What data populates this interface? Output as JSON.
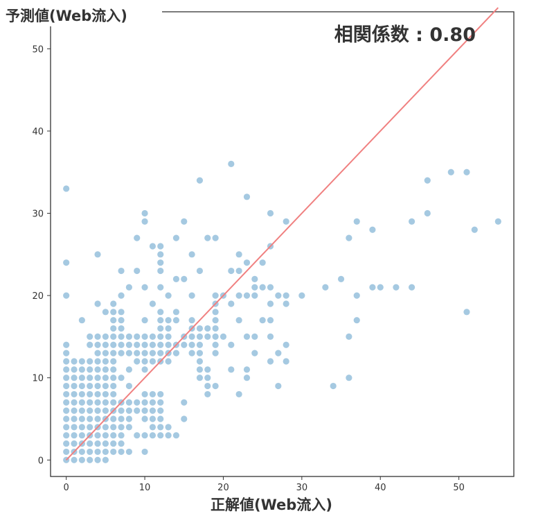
{
  "chart_data": {
    "type": "scatter",
    "xlabel": "正解値(Web流入)",
    "ylabel": "予測値(Web流入)",
    "annotation": "相関係数 : 0.80",
    "xlim": [
      -2,
      57
    ],
    "ylim": [
      -2,
      54.5
    ],
    "xticks": [
      0,
      10,
      20,
      30,
      40,
      50
    ],
    "yticks": [
      0,
      10,
      20,
      30,
      40,
      50
    ],
    "point_color": "#1f77b4",
    "point_opacity": 0.4,
    "line_color": "#f08080",
    "diagonal_line": {
      "x": [
        0,
        55
      ],
      "y": [
        0,
        55
      ]
    },
    "grid": false,
    "points": [
      [
        0,
        0
      ],
      [
        0,
        1
      ],
      [
        0,
        2
      ],
      [
        0,
        3
      ],
      [
        0,
        4
      ],
      [
        0,
        5
      ],
      [
        0,
        6
      ],
      [
        0,
        7
      ],
      [
        0,
        8
      ],
      [
        0,
        9
      ],
      [
        0,
        10
      ],
      [
        0,
        11
      ],
      [
        0,
        12
      ],
      [
        0,
        13
      ],
      [
        0,
        14
      ],
      [
        0,
        20
      ],
      [
        0,
        24
      ],
      [
        0,
        33
      ],
      [
        1,
        0
      ],
      [
        1,
        1
      ],
      [
        1,
        2
      ],
      [
        1,
        3
      ],
      [
        1,
        4
      ],
      [
        1,
        5
      ],
      [
        1,
        6
      ],
      [
        1,
        7
      ],
      [
        1,
        8
      ],
      [
        1,
        9
      ],
      [
        1,
        10
      ],
      [
        1,
        11
      ],
      [
        1,
        12
      ],
      [
        2,
        0
      ],
      [
        2,
        1
      ],
      [
        2,
        2
      ],
      [
        2,
        3
      ],
      [
        2,
        4
      ],
      [
        2,
        5
      ],
      [
        2,
        6
      ],
      [
        2,
        7
      ],
      [
        2,
        8
      ],
      [
        2,
        9
      ],
      [
        2,
        10
      ],
      [
        2,
        11
      ],
      [
        2,
        12
      ],
      [
        2,
        17
      ],
      [
        3,
        0
      ],
      [
        3,
        1
      ],
      [
        3,
        2
      ],
      [
        3,
        3
      ],
      [
        3,
        4
      ],
      [
        3,
        5
      ],
      [
        3,
        6
      ],
      [
        3,
        7
      ],
      [
        3,
        8
      ],
      [
        3,
        9
      ],
      [
        3,
        10
      ],
      [
        3,
        11
      ],
      [
        3,
        12
      ],
      [
        3,
        14
      ],
      [
        3,
        15
      ],
      [
        4,
        0
      ],
      [
        4,
        1
      ],
      [
        4,
        2
      ],
      [
        4,
        3
      ],
      [
        4,
        4
      ],
      [
        4,
        5
      ],
      [
        4,
        6
      ],
      [
        4,
        7
      ],
      [
        4,
        8
      ],
      [
        4,
        9
      ],
      [
        4,
        10
      ],
      [
        4,
        11
      ],
      [
        4,
        12
      ],
      [
        4,
        13
      ],
      [
        4,
        14
      ],
      [
        4,
        15
      ],
      [
        4,
        19
      ],
      [
        4,
        25
      ],
      [
        5,
        0
      ],
      [
        5,
        1
      ],
      [
        5,
        2
      ],
      [
        5,
        3
      ],
      [
        5,
        4
      ],
      [
        5,
        5
      ],
      [
        5,
        6
      ],
      [
        5,
        7
      ],
      [
        5,
        8
      ],
      [
        5,
        9
      ],
      [
        5,
        10
      ],
      [
        5,
        11
      ],
      [
        5,
        12
      ],
      [
        5,
        13
      ],
      [
        5,
        14
      ],
      [
        5,
        15
      ],
      [
        5,
        18
      ],
      [
        6,
        1
      ],
      [
        6,
        2
      ],
      [
        6,
        3
      ],
      [
        6,
        4
      ],
      [
        6,
        5
      ],
      [
        6,
        6
      ],
      [
        6,
        7
      ],
      [
        6,
        8
      ],
      [
        6,
        9
      ],
      [
        6,
        10
      ],
      [
        6,
        11
      ],
      [
        6,
        12
      ],
      [
        6,
        13
      ],
      [
        6,
        14
      ],
      [
        6,
        15
      ],
      [
        6,
        16
      ],
      [
        6,
        17
      ],
      [
        6,
        18
      ],
      [
        6,
        19
      ],
      [
        7,
        1
      ],
      [
        7,
        2
      ],
      [
        7,
        3
      ],
      [
        7,
        4
      ],
      [
        7,
        5
      ],
      [
        7,
        6
      ],
      [
        7,
        7
      ],
      [
        7,
        10
      ],
      [
        7,
        13
      ],
      [
        7,
        14
      ],
      [
        7,
        15
      ],
      [
        7,
        16
      ],
      [
        7,
        17
      ],
      [
        7,
        18
      ],
      [
        7,
        20
      ],
      [
        7,
        23
      ],
      [
        8,
        1
      ],
      [
        8,
        4
      ],
      [
        8,
        5
      ],
      [
        8,
        6
      ],
      [
        8,
        7
      ],
      [
        8,
        9
      ],
      [
        8,
        11
      ],
      [
        8,
        13
      ],
      [
        8,
        14
      ],
      [
        8,
        15
      ],
      [
        8,
        21
      ],
      [
        9,
        3
      ],
      [
        9,
        6
      ],
      [
        9,
        7
      ],
      [
        9,
        12
      ],
      [
        9,
        13
      ],
      [
        9,
        14
      ],
      [
        9,
        15
      ],
      [
        9,
        23
      ],
      [
        9,
        27
      ],
      [
        10,
        1
      ],
      [
        10,
        3
      ],
      [
        10,
        5
      ],
      [
        10,
        6
      ],
      [
        10,
        7
      ],
      [
        10,
        8
      ],
      [
        10,
        11
      ],
      [
        10,
        12
      ],
      [
        10,
        13
      ],
      [
        10,
        14
      ],
      [
        10,
        15
      ],
      [
        10,
        17
      ],
      [
        10,
        21
      ],
      [
        10,
        29
      ],
      [
        10,
        30
      ],
      [
        11,
        3
      ],
      [
        11,
        4
      ],
      [
        11,
        5
      ],
      [
        11,
        6
      ],
      [
        11,
        7
      ],
      [
        11,
        8
      ],
      [
        11,
        12
      ],
      [
        11,
        13
      ],
      [
        11,
        14
      ],
      [
        11,
        15
      ],
      [
        11,
        19
      ],
      [
        11,
        26
      ],
      [
        12,
        3
      ],
      [
        12,
        4
      ],
      [
        12,
        5
      ],
      [
        12,
        6
      ],
      [
        12,
        7
      ],
      [
        12,
        8
      ],
      [
        12,
        12
      ],
      [
        12,
        13
      ],
      [
        12,
        14
      ],
      [
        12,
        15
      ],
      [
        12,
        16
      ],
      [
        12,
        17
      ],
      [
        12,
        18
      ],
      [
        12,
        21
      ],
      [
        12,
        23
      ],
      [
        12,
        24
      ],
      [
        12,
        25
      ],
      [
        12,
        26
      ],
      [
        13,
        3
      ],
      [
        13,
        4
      ],
      [
        13,
        12
      ],
      [
        13,
        13
      ],
      [
        13,
        14
      ],
      [
        13,
        15
      ],
      [
        13,
        16
      ],
      [
        13,
        17
      ],
      [
        13,
        20
      ],
      [
        14,
        3
      ],
      [
        14,
        13
      ],
      [
        14,
        14
      ],
      [
        14,
        17
      ],
      [
        14,
        18
      ],
      [
        14,
        22
      ],
      [
        14,
        27
      ],
      [
        15,
        5
      ],
      [
        15,
        7
      ],
      [
        15,
        14
      ],
      [
        15,
        15
      ],
      [
        15,
        22
      ],
      [
        15,
        29
      ],
      [
        16,
        13
      ],
      [
        16,
        14
      ],
      [
        16,
        15
      ],
      [
        16,
        16
      ],
      [
        16,
        17
      ],
      [
        16,
        20
      ],
      [
        16,
        25
      ],
      [
        17,
        10
      ],
      [
        17,
        11
      ],
      [
        17,
        12
      ],
      [
        17,
        13
      ],
      [
        17,
        14
      ],
      [
        17,
        15
      ],
      [
        17,
        16
      ],
      [
        17,
        23
      ],
      [
        17,
        34
      ],
      [
        18,
        8
      ],
      [
        18,
        9
      ],
      [
        18,
        10
      ],
      [
        18,
        11
      ],
      [
        18,
        15
      ],
      [
        18,
        16
      ],
      [
        18,
        27
      ],
      [
        19,
        9
      ],
      [
        19,
        13
      ],
      [
        19,
        14
      ],
      [
        19,
        15
      ],
      [
        19,
        16
      ],
      [
        19,
        17
      ],
      [
        19,
        18
      ],
      [
        19,
        19
      ],
      [
        19,
        20
      ],
      [
        19,
        27
      ],
      [
        20,
        15
      ],
      [
        20,
        20
      ],
      [
        21,
        11
      ],
      [
        21,
        14
      ],
      [
        21,
        19
      ],
      [
        21,
        23
      ],
      [
        21,
        36
      ],
      [
        22,
        8
      ],
      [
        22,
        17
      ],
      [
        22,
        20
      ],
      [
        22,
        23
      ],
      [
        22,
        25
      ],
      [
        23,
        10
      ],
      [
        23,
        11
      ],
      [
        23,
        15
      ],
      [
        23,
        20
      ],
      [
        23,
        24
      ],
      [
        23,
        32
      ],
      [
        24,
        13
      ],
      [
        24,
        15
      ],
      [
        24,
        20
      ],
      [
        24,
        21
      ],
      [
        24,
        22
      ],
      [
        25,
        17
      ],
      [
        25,
        21
      ],
      [
        25,
        24
      ],
      [
        26,
        12
      ],
      [
        26,
        15
      ],
      [
        26,
        17
      ],
      [
        26,
        19
      ],
      [
        26,
        21
      ],
      [
        26,
        26
      ],
      [
        26,
        30
      ],
      [
        27,
        9
      ],
      [
        27,
        13
      ],
      [
        27,
        20
      ],
      [
        28,
        12
      ],
      [
        28,
        14
      ],
      [
        28,
        19
      ],
      [
        28,
        20
      ],
      [
        28,
        29
      ],
      [
        30,
        20
      ],
      [
        33,
        21
      ],
      [
        34,
        9
      ],
      [
        35,
        22
      ],
      [
        36,
        10
      ],
      [
        36,
        15
      ],
      [
        36,
        27
      ],
      [
        37,
        17
      ],
      [
        37,
        20
      ],
      [
        37,
        29
      ],
      [
        39,
        21
      ],
      [
        39,
        28
      ],
      [
        40,
        21
      ],
      [
        42,
        21
      ],
      [
        44,
        21
      ],
      [
        44,
        29
      ],
      [
        46,
        30
      ],
      [
        46,
        34
      ],
      [
        49,
        35
      ],
      [
        51,
        18
      ],
      [
        51,
        35
      ],
      [
        52,
        28
      ],
      [
        55,
        29
      ]
    ]
  }
}
